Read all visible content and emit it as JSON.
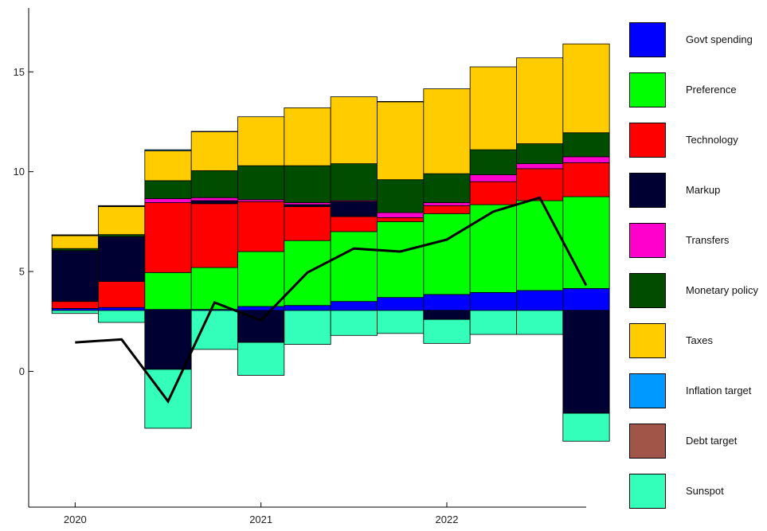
{
  "chart_data": {
    "type": "bar",
    "subtype": "stacked-bar-with-line",
    "title": "",
    "xlabel": "",
    "ylabel": "",
    "baseline": 3.05,
    "ylim": [
      -6.8,
      18.2
    ],
    "xlim": [
      2019.75,
      2022.75
    ],
    "x_ticks": [
      2020,
      2021,
      2022
    ],
    "y_ticks": [
      0,
      5,
      10,
      15
    ],
    "grid": false,
    "legend_position": "right",
    "x": [
      2020.0,
      2020.25,
      2020.5,
      2020.75,
      2021.0,
      2021.25,
      2021.5,
      2021.75,
      2022.0,
      2022.25,
      2022.5,
      2022.75
    ],
    "line": {
      "color": "#000000",
      "values": [
        1.45,
        1.6,
        -1.5,
        3.45,
        2.55,
        4.95,
        6.15,
        6.0,
        6.6,
        8.0,
        8.7,
        4.3
      ]
    },
    "series": [
      {
        "name": "Govt spending",
        "color": "#0000FF",
        "values": [
          0.1,
          0.15,
          0.05,
          0.05,
          0.2,
          0.25,
          0.45,
          0.65,
          0.8,
          0.9,
          1.0,
          1.1
        ]
      },
      {
        "name": "Preference",
        "color": "#00FF00",
        "values": [
          0.0,
          0.0,
          1.85,
          2.1,
          2.75,
          3.25,
          3.5,
          3.8,
          4.05,
          4.4,
          4.5,
          4.6
        ]
      },
      {
        "name": "Technology",
        "color": "#FF0000",
        "values": [
          0.35,
          1.3,
          3.5,
          3.2,
          2.5,
          1.7,
          0.75,
          0.2,
          0.4,
          1.15,
          1.6,
          1.7
        ]
      },
      {
        "name": "Markup",
        "color": "#000033",
        "values": [
          2.55,
          2.25,
          -2.95,
          0.15,
          -1.6,
          0.1,
          0.75,
          0.0,
          -0.45,
          0.0,
          0.0,
          -5.15
        ]
      },
      {
        "name": "Transfers",
        "color": "#FF00CC",
        "values": [
          0.0,
          0.0,
          0.2,
          0.15,
          0.1,
          0.1,
          0.05,
          0.25,
          0.15,
          0.35,
          0.25,
          0.3
        ]
      },
      {
        "name": "Monetary policy",
        "color": "#004D00",
        "values": [
          0.1,
          0.1,
          0.9,
          1.35,
          1.7,
          1.85,
          1.85,
          1.65,
          1.45,
          1.25,
          1.0,
          1.2
        ]
      },
      {
        "name": "Taxes",
        "color": "#FFCC00",
        "values": [
          0.65,
          1.4,
          1.5,
          1.95,
          2.45,
          2.9,
          3.35,
          3.9,
          4.25,
          4.15,
          4.3,
          4.45
        ]
      },
      {
        "name": "Inflation target",
        "color": "#0099FF",
        "values": [
          0.02,
          0.03,
          0.05,
          0.02,
          0.0,
          0.0,
          0.0,
          0.02,
          0.0,
          0.0,
          0.0,
          0.0
        ]
      },
      {
        "name": "Debt target",
        "color": "#A05548",
        "values": [
          0.02,
          0.02,
          0.0,
          0.0,
          0.0,
          0.0,
          0.0,
          0.0,
          0.0,
          0.0,
          0.0,
          0.0
        ]
      },
      {
        "name": "Sunspot",
        "color": "#33FFBB",
        "values": [
          -0.15,
          -0.6,
          -2.95,
          -1.95,
          -1.65,
          -1.7,
          -1.25,
          -1.15,
          -1.2,
          -1.2,
          -1.2,
          -1.4
        ]
      }
    ]
  }
}
